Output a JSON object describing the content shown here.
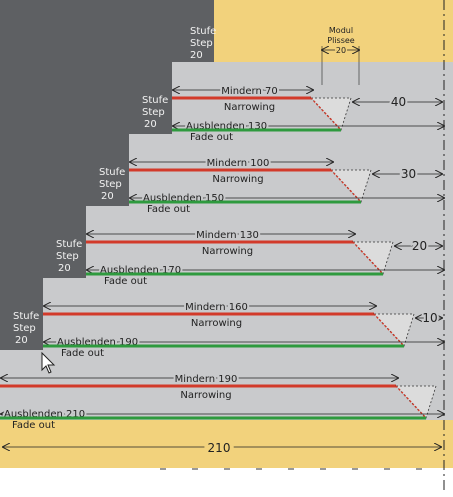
{
  "diagram": {
    "colors": {
      "dark_panel": "#5e6063",
      "light_panel": "#c9cacc",
      "yellow_band": "#f2d27c",
      "narrowing_line": "#d23a2a",
      "fade_line": "#2e9a3e",
      "triangle_fill": "#dcdcdc"
    },
    "modul": {
      "title": "Modul",
      "subtitle": "Plissee",
      "value": "20"
    },
    "steps": [
      {
        "stufe": "Stufe",
        "step": "Step",
        "value": "20",
        "mindern": "Mindern 70",
        "narrowing": "Narrowing",
        "ausblenden": "Ausblenden",
        "ausblenden_value": "130",
        "fade_out": "Fade out",
        "right_dim": "40"
      },
      {
        "stufe": "Stufe",
        "step": "Step",
        "value": "20",
        "mindern": "Mindern 100",
        "narrowing": "Narrowing",
        "ausblenden": "Ausblenden",
        "ausblenden_value": "150",
        "fade_out": "Fade out",
        "right_dim": "30"
      },
      {
        "stufe": "Stufe",
        "step": "Step",
        "value": "20",
        "mindern": "Mindern 130",
        "narrowing": "Narrowing",
        "ausblenden": "Ausblenden",
        "ausblenden_value": "170",
        "fade_out": "Fade out",
        "right_dim": "20"
      },
      {
        "stufe": "Stufe",
        "step": "Step",
        "value": "20",
        "mindern": "Mindern 160",
        "narrowing": "Narrowing",
        "ausblenden": "Ausblenden",
        "ausblenden_value": "190",
        "fade_out": "Fade out",
        "right_dim": "10"
      },
      {
        "stufe": "",
        "step": "",
        "value": "",
        "mindern": "Mindern 190",
        "narrowing": "Narrowing",
        "ausblenden": "Ausblenden",
        "ausblenden_value": "210",
        "fade_out": "Fade out",
        "right_dim": ""
      }
    ],
    "top_step": {
      "stufe": "Stufe",
      "step": "Step",
      "value": "20"
    },
    "total_width": "210"
  }
}
